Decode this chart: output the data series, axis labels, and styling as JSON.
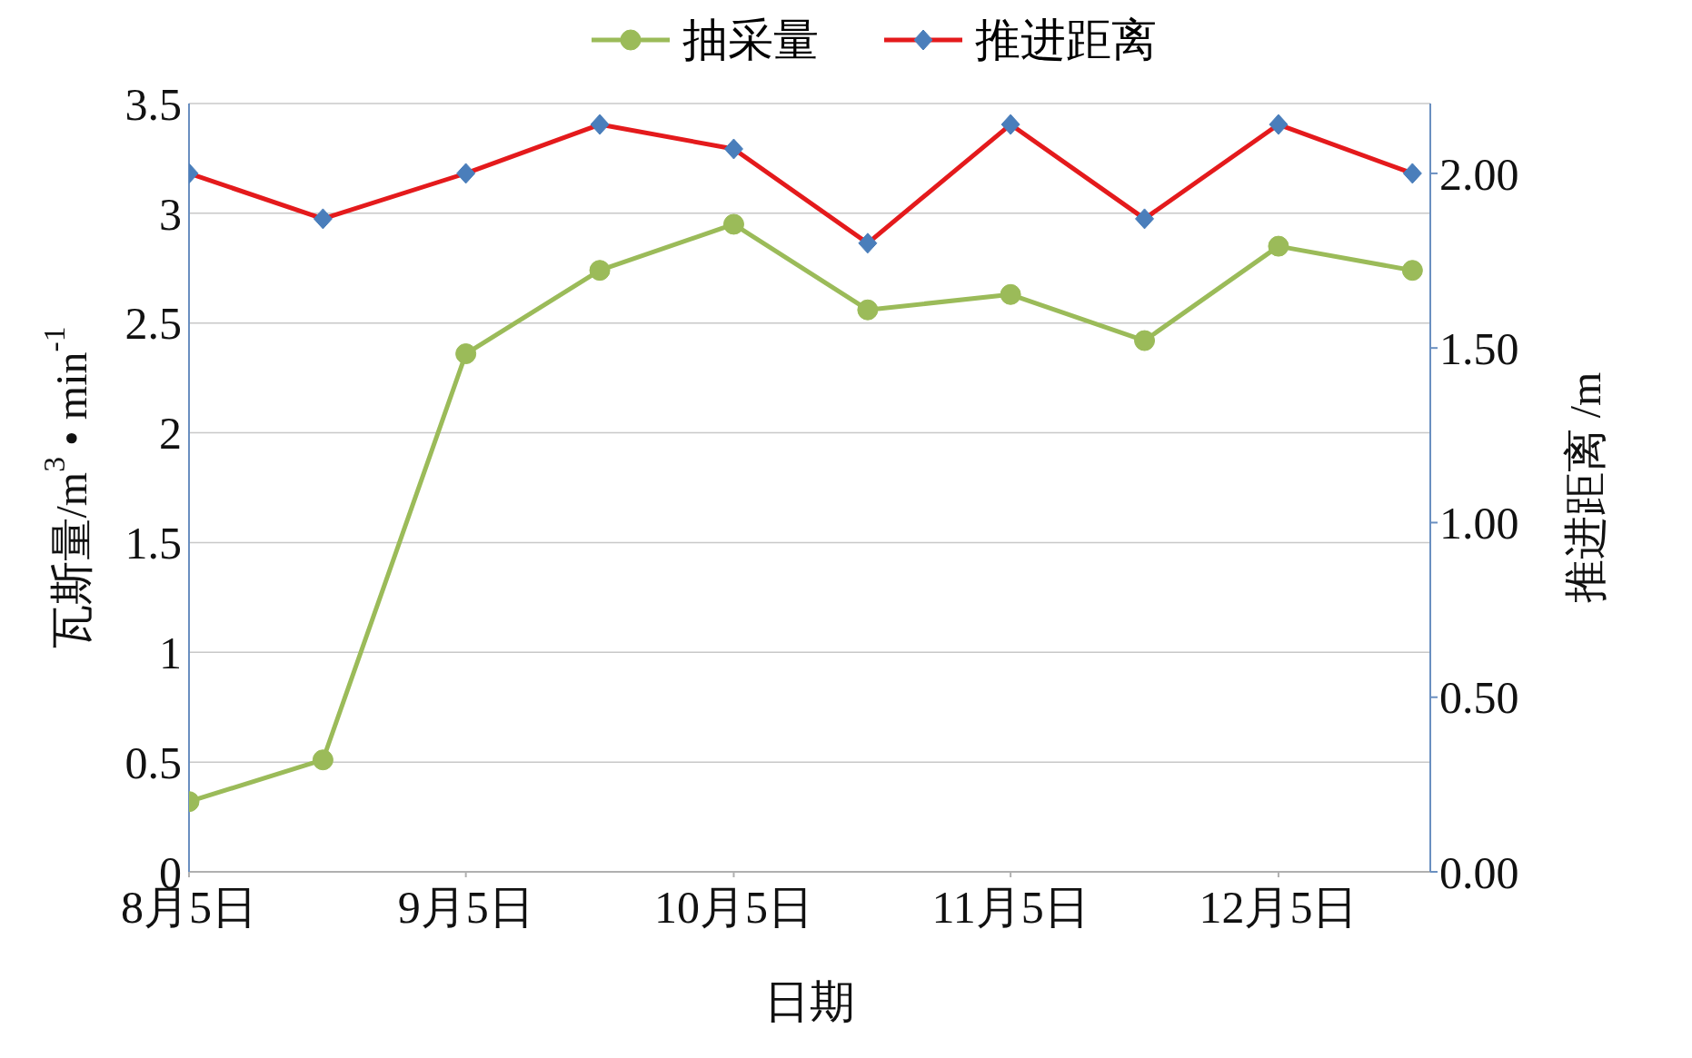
{
  "chart_data": {
    "type": "line",
    "xlabel": "日期",
    "ylabel": "瓦斯量/m$^{3}$ • min$^{-1}$",
    "y2label": "推进距离 /m",
    "x": [
      "--08-05",
      "--08-20",
      "--09-05",
      "--09-20",
      "--10-05",
      "--10-20",
      "--11-05",
      "--11-20",
      "--12-05",
      "--12-20"
    ],
    "xlim": [
      "--08-05",
      "--12-22"
    ],
    "xticks": [
      {
        "value": "--08-05",
        "label": "8月5日"
      },
      {
        "value": "--09-05",
        "label": "9月5日"
      },
      {
        "value": "--10-05",
        "label": "10月5日"
      },
      {
        "value": "--11-05",
        "label": "11月5日"
      },
      {
        "value": "--12-05",
        "label": "12月5日"
      }
    ],
    "ylim": [
      0,
      3.5
    ],
    "yticks": [
      0,
      0.5,
      1,
      1.5,
      2,
      2.5,
      3,
      3.5
    ],
    "y2lim": [
      0,
      2.2
    ],
    "y2ticks": [
      {
        "value": 0,
        "label": "0.00"
      },
      {
        "value": 0.5,
        "label": "0.50"
      },
      {
        "value": 1,
        "label": "1.00"
      },
      {
        "value": 1.5,
        "label": "1.50"
      },
      {
        "value": 2,
        "label": "2.00"
      }
    ],
    "series": [
      {
        "name": "抽采量",
        "color": "#9bbb59",
        "marker": "circle",
        "values": [
          0.32,
          0.51,
          2.36,
          2.74,
          2.95,
          2.56,
          2.63,
          2.42,
          2.85,
          2.74
        ]
      },
      {
        "name": "推进距离",
        "color": "#e41a1c",
        "marker": "diamond",
        "axis": "y2",
        "values": [
          2.0,
          1.87,
          2.0,
          2.14,
          2.07,
          1.8,
          2.14,
          1.87,
          2.14,
          2.0
        ]
      }
    ],
    "grid": "y",
    "legend": "top",
    "line_style": "solid"
  }
}
